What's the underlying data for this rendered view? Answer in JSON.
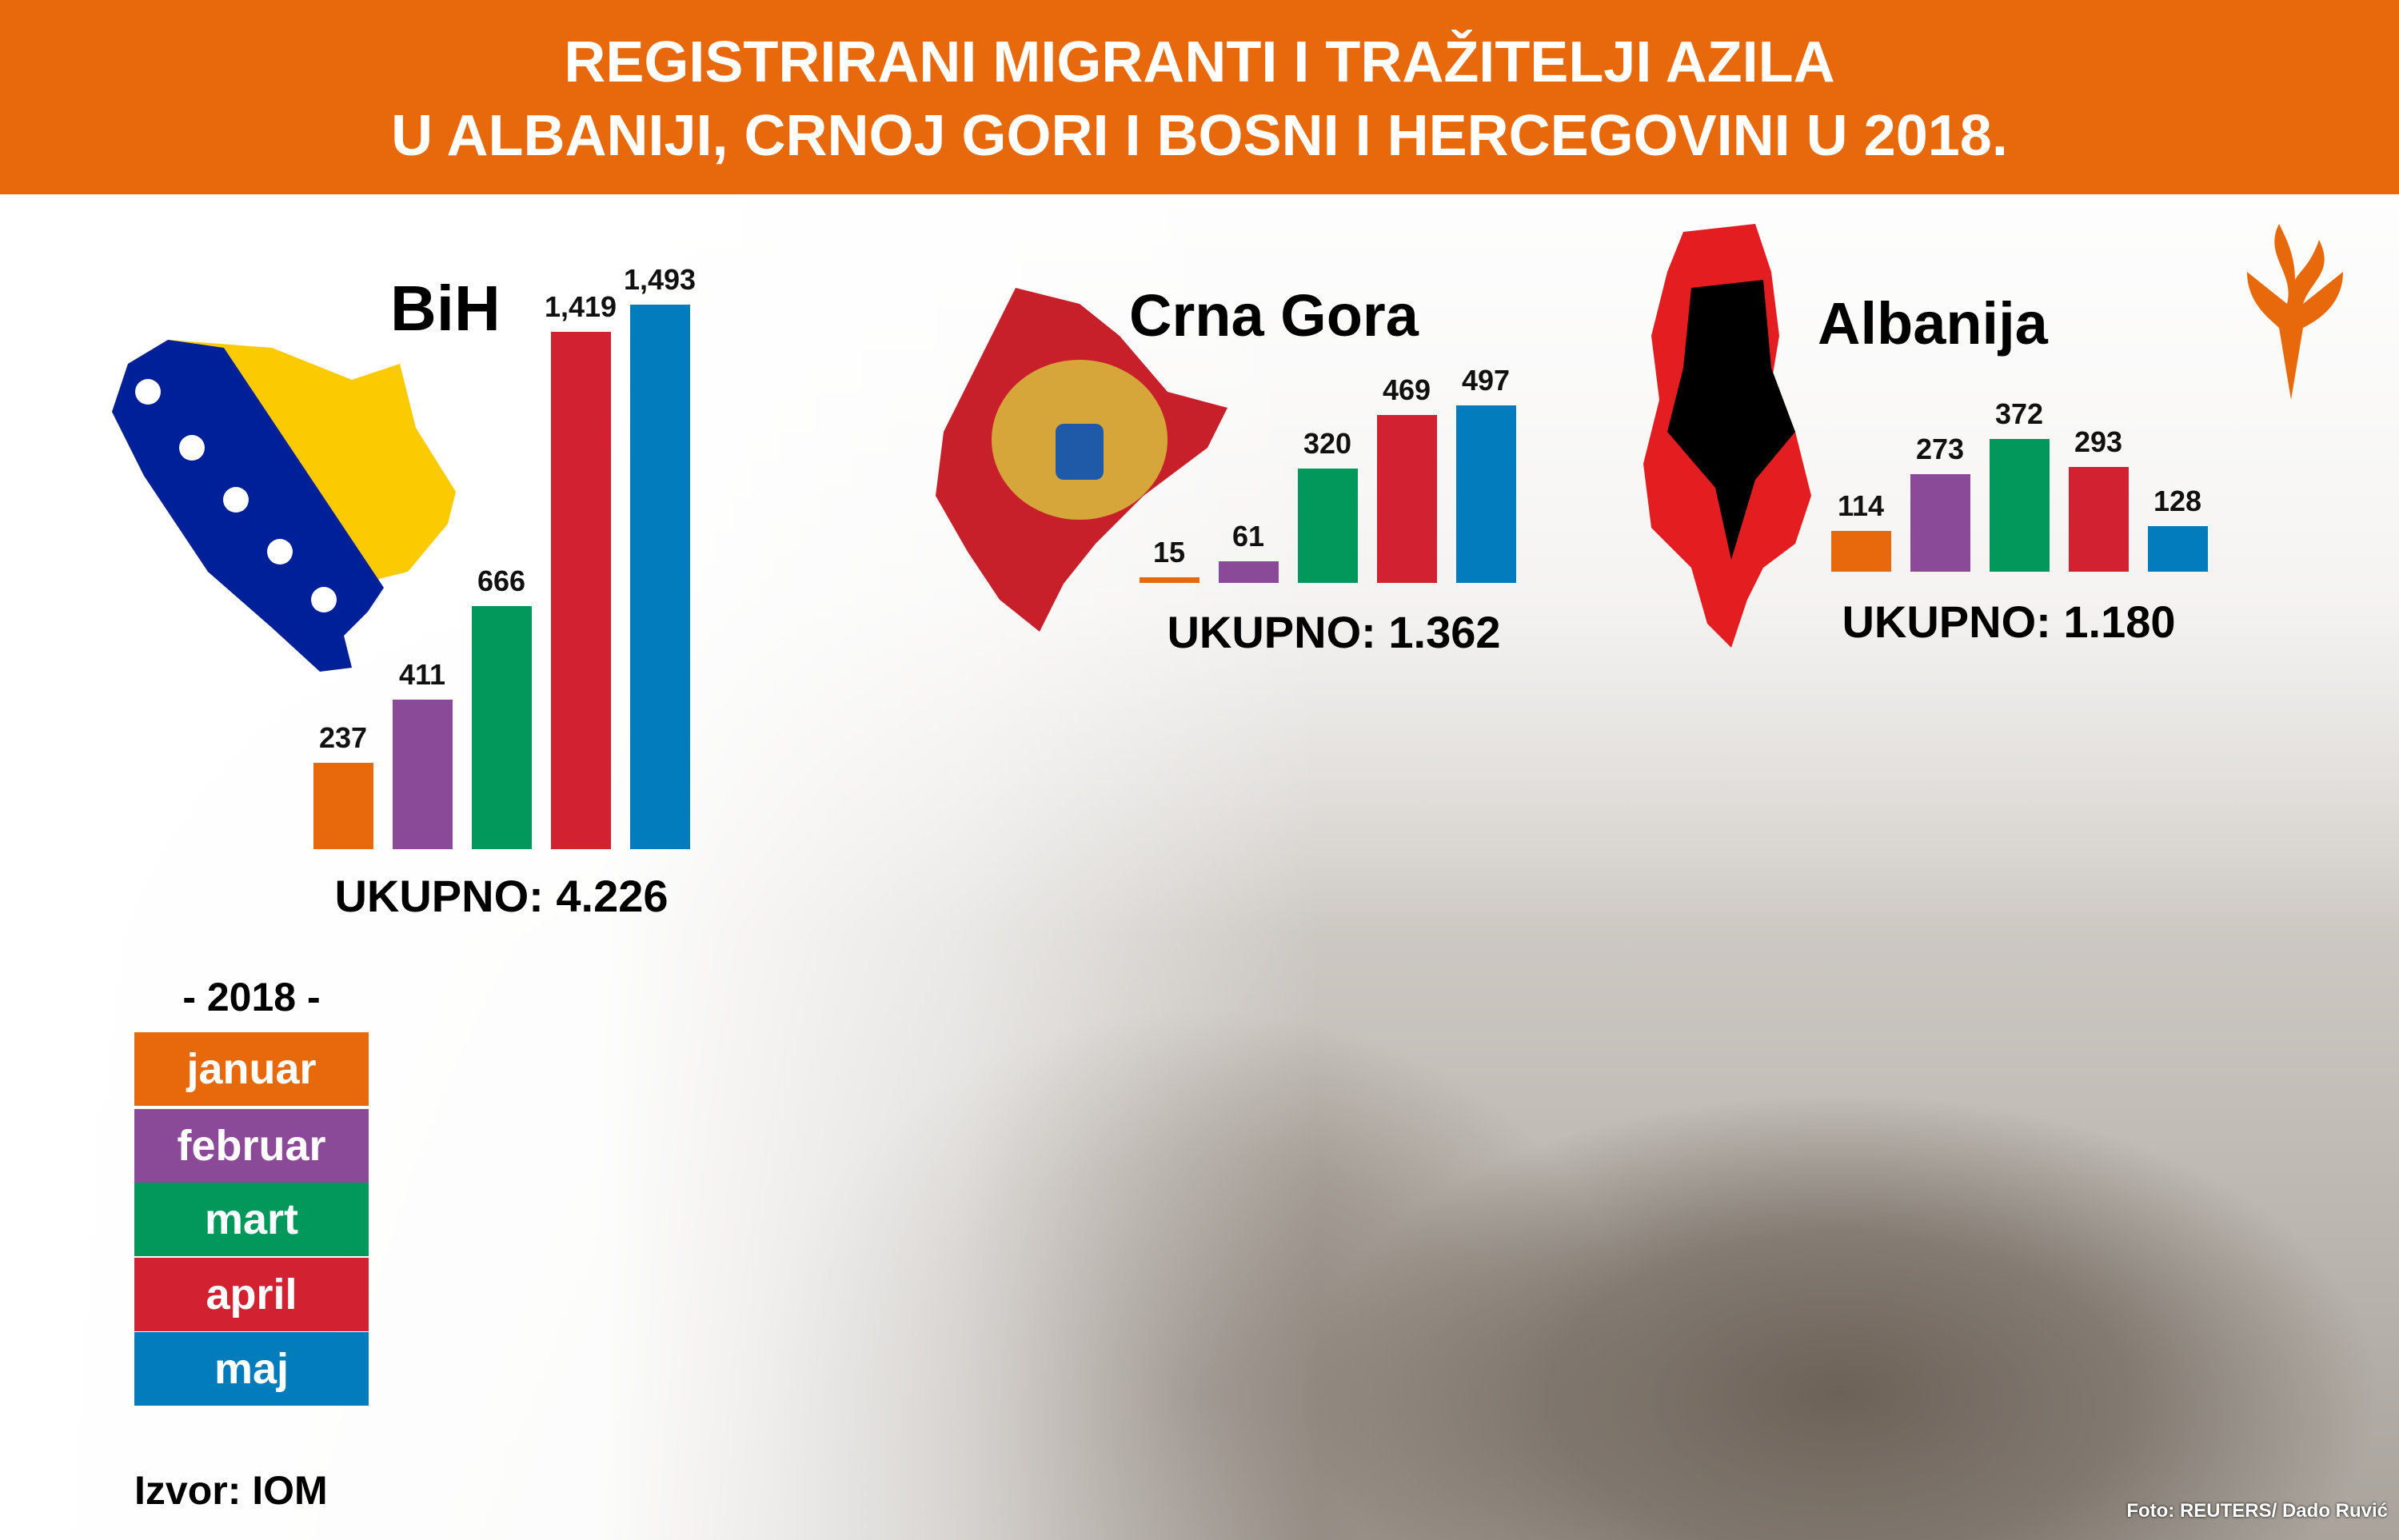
{
  "header": {
    "line1": "REGISTRIRANI MIGRANTI I TRAŽITELJI AZILA",
    "line2": "U ALBANIJI, CRNOJ GORI I BOSNI I HERCEGOVINI U 2018."
  },
  "chart_data": [
    {
      "type": "bar",
      "title": "BiH",
      "categories": [
        "januar",
        "februar",
        "mart",
        "april",
        "maj"
      ],
      "values": [
        237,
        411,
        666,
        1419,
        1493
      ],
      "labels": [
        "237",
        "411",
        "666",
        "1,419",
        "1,493"
      ],
      "total_label": "UKUPNO: 4.226"
    },
    {
      "type": "bar",
      "title": "Crna Gora",
      "categories": [
        "januar",
        "februar",
        "mart",
        "april",
        "maj"
      ],
      "values": [
        15,
        61,
        320,
        469,
        497
      ],
      "labels": [
        "15",
        "61",
        "320",
        "469",
        "497"
      ],
      "total_label": "UKUPNO: 1.362"
    },
    {
      "type": "bar",
      "title": "Albanija",
      "categories": [
        "januar",
        "februar",
        "mart",
        "april",
        "maj"
      ],
      "values": [
        114,
        273,
        372,
        293,
        128
      ],
      "labels": [
        "114",
        "273",
        "372",
        "293",
        "128"
      ],
      "total_label": "UKUPNO: 1.180"
    }
  ],
  "colors": {
    "januar": "#e8690b",
    "februar": "#8b4a98",
    "mart": "#02985c",
    "april": "#d22232",
    "maj": "#027cbd",
    "header": "#e8690b"
  },
  "legend": {
    "year": "- 2018 -",
    "items": [
      "januar",
      "februar",
      "mart",
      "april",
      "maj"
    ]
  },
  "source": "Izvor: IOM",
  "credit": "Foto: REUTERS/ Dado Ruvić",
  "icons": {
    "logo": "rfe-torch-logo",
    "flags": [
      "bosnia-flag-map",
      "montenegro-flag-map",
      "albania-flag-map"
    ]
  }
}
